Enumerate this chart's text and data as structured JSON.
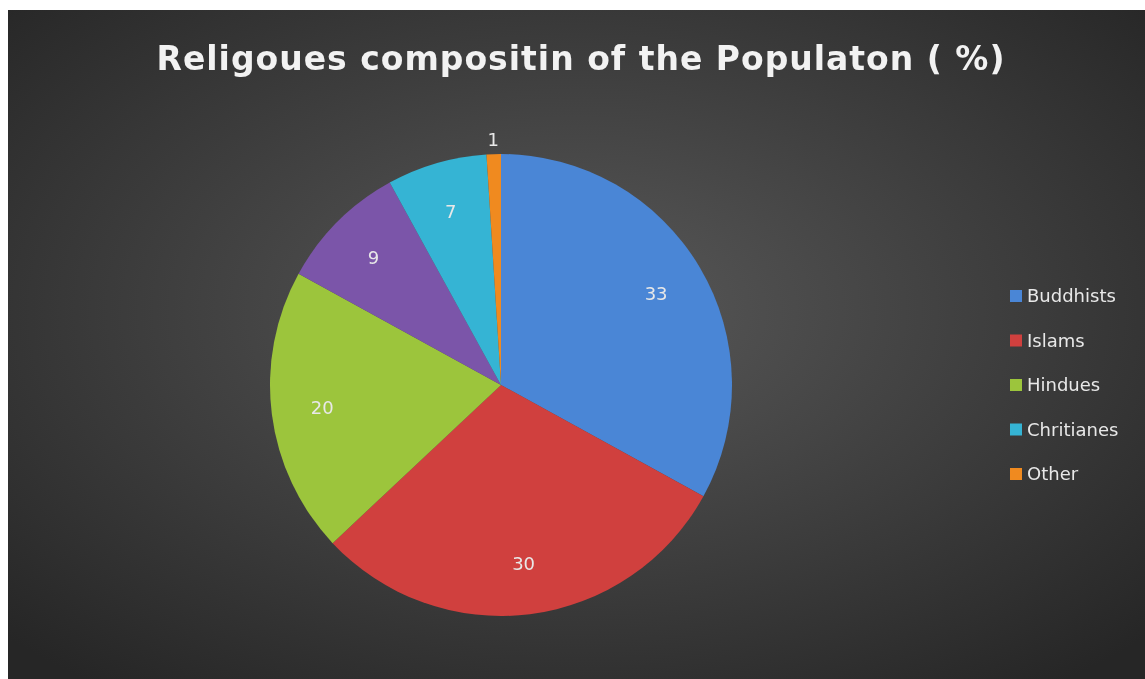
{
  "chart_data": {
    "type": "pie",
    "title": "Religoues compositin of the Populaton ( %)",
    "categories": [
      "Buddhists",
      "Islams",
      "Hindues",
      null,
      "Chritianes",
      "Other"
    ],
    "values": [
      33,
      30,
      20,
      9,
      7,
      1
    ],
    "colors": [
      "#4a86d6",
      "#d0403e",
      "#9cc53c",
      "#7b55a9",
      "#35b4d4",
      "#f08a1f"
    ],
    "data_labels": true,
    "legend": "right"
  }
}
